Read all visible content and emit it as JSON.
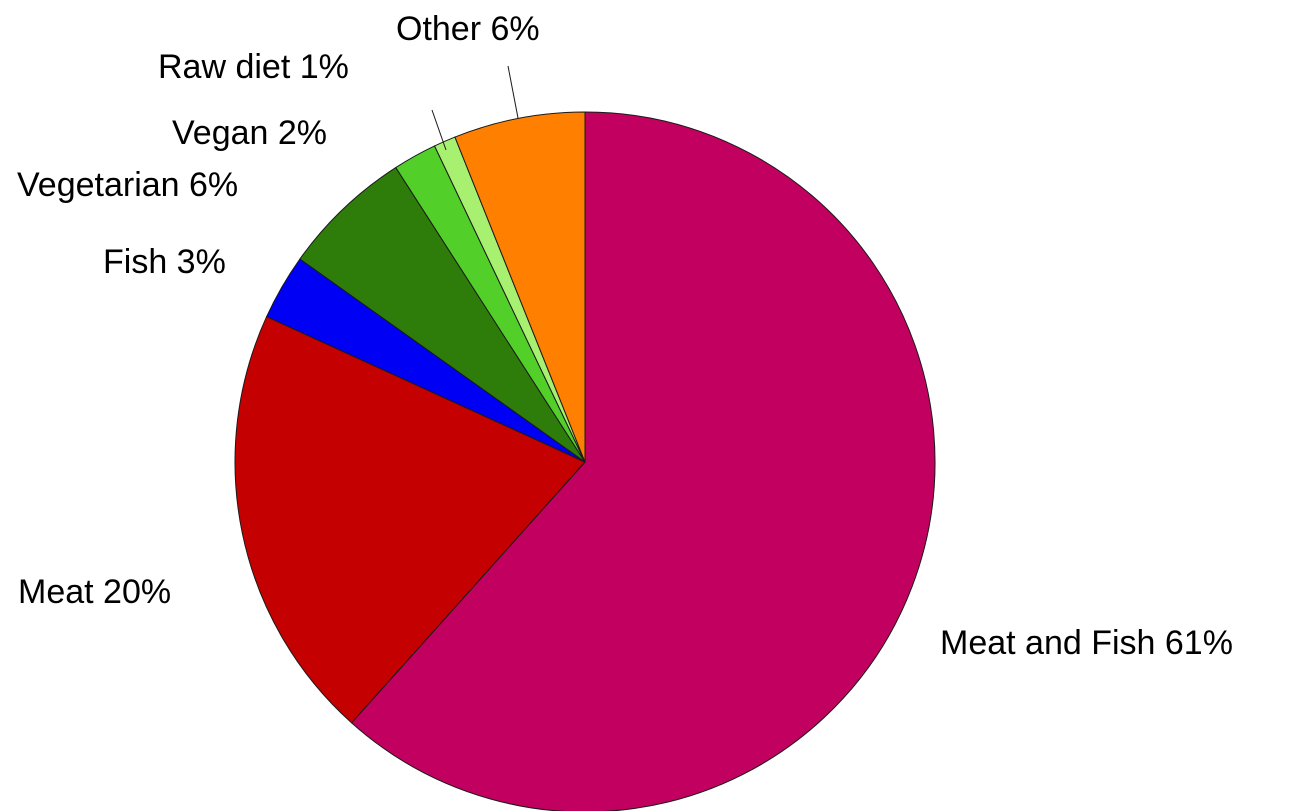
{
  "chart_data": {
    "type": "pie",
    "start_angle_deg": 0,
    "direction": "clockwise",
    "legend": "none",
    "slices": [
      {
        "label": "Meat and Fish",
        "value": 61,
        "display": "Meat and Fish 61%",
        "color": "#c20060"
      },
      {
        "label": "Meat",
        "value": 20,
        "display": "Meat 20%",
        "color": "#c40000"
      },
      {
        "label": "Fish",
        "value": 3,
        "display": "Fish 3%",
        "color": "#0000f5"
      },
      {
        "label": "Vegetarian",
        "value": 6,
        "display": "Vegetarian 6%",
        "color": "#2e7d0a"
      },
      {
        "label": "Vegan",
        "value": 2,
        "display": "Vegan 2%",
        "color": "#53cf2a"
      },
      {
        "label": "Raw diet",
        "value": 1,
        "display": "Raw diet 1%",
        "color": "#a8f070"
      },
      {
        "label": "Other",
        "value": 6,
        "display": "Other 6%",
        "color": "#ff8000"
      }
    ]
  }
}
